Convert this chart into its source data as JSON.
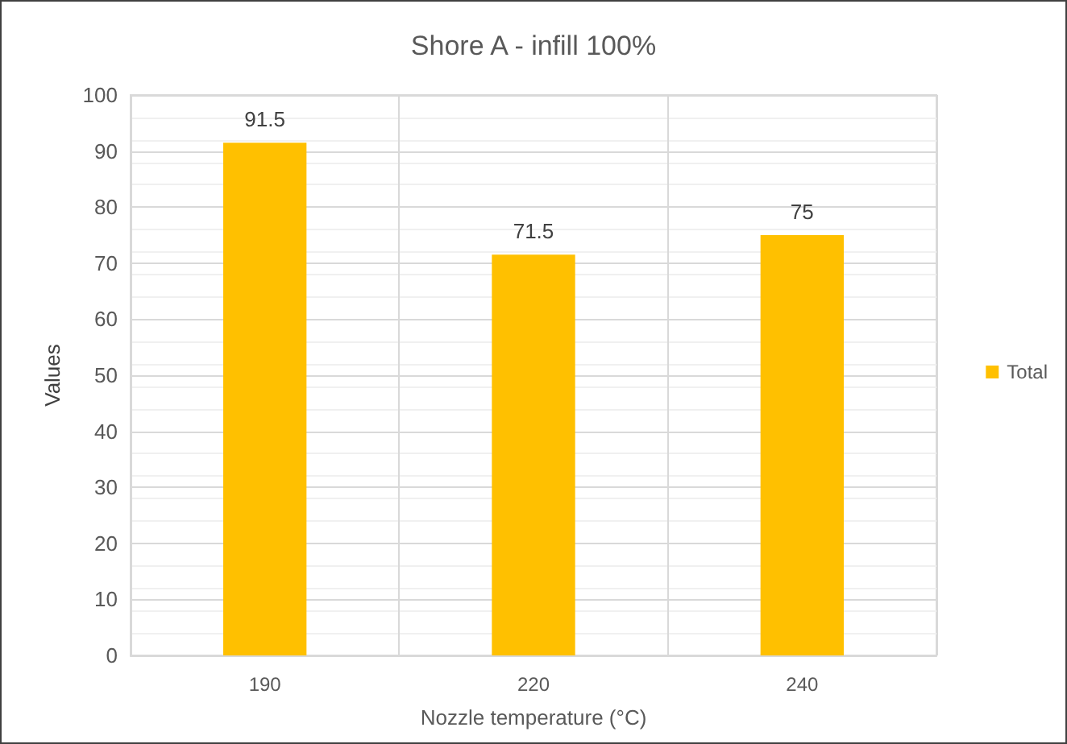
{
  "chart_data": {
    "type": "bar",
    "title": "Shore A - infill 100%",
    "xlabel": "Nozzle temperature (°C)",
    "ylabel": "Values",
    "categories": [
      "190",
      "220",
      "240"
    ],
    "series": [
      {
        "name": "Total",
        "color": "#ffc000",
        "values": [
          91.5,
          71.5,
          75
        ]
      }
    ],
    "ylim": [
      0,
      100
    ],
    "yticks": [
      0,
      10,
      20,
      30,
      40,
      50,
      60,
      70,
      80,
      90,
      100
    ],
    "grid": true,
    "legend": "right",
    "data_labels": true
  }
}
